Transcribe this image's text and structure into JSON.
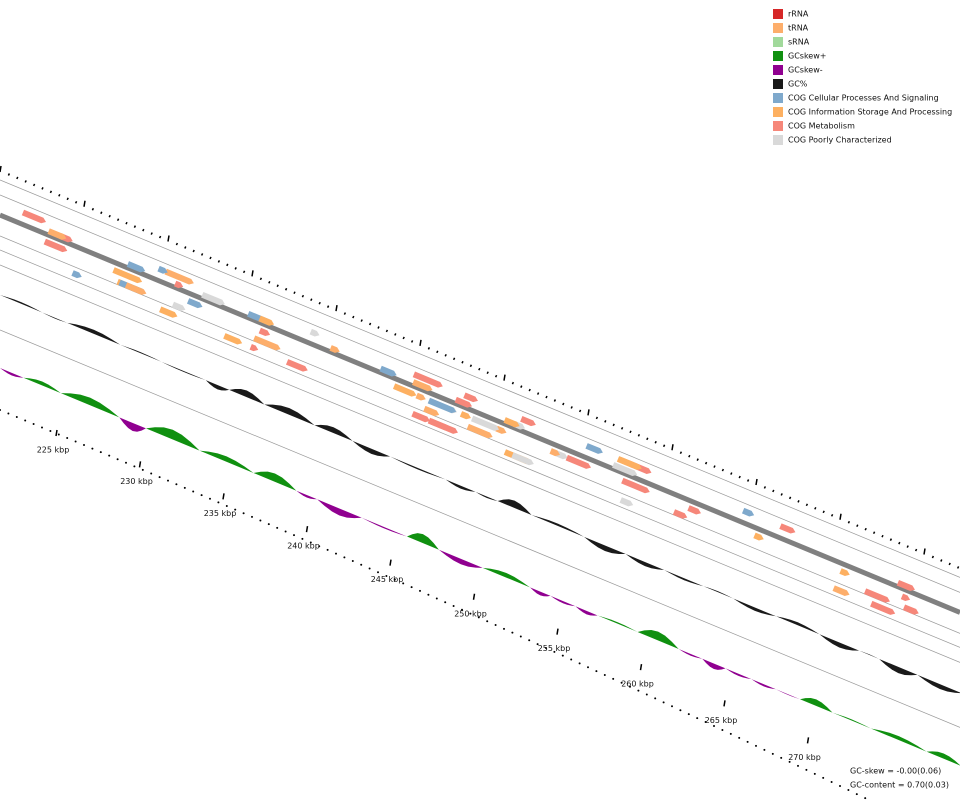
{
  "legend": [
    {
      "label": "rRNA",
      "color": "#d62728"
    },
    {
      "label": "tRNA",
      "color": "#fdae6b"
    },
    {
      "label": "sRNA",
      "color": "#a1d99b"
    },
    {
      "label": "GCskew+",
      "color": "#109010"
    },
    {
      "label": "GCskew-",
      "color": "#900090"
    },
    {
      "label": "GC%",
      "color": "#1a1a1a"
    },
    {
      "label": "COG Cellular Processes And Signaling",
      "color": "#7fa9cc"
    },
    {
      "label": "COG Information Storage And Processing",
      "color": "#fdb061"
    },
    {
      "label": "COG Metabolism",
      "color": "#f6877a"
    },
    {
      "label": "COG Poorly Characterized",
      "color": "#d9d9d9"
    }
  ],
  "ticks": [
    "225 kbp",
    "230 kbp",
    "235 kbp",
    "240 kbp",
    "245 kbp",
    "250 kbp",
    "255 kbp",
    "260 kbp",
    "265 kbp",
    "270 kbp"
  ],
  "stats": {
    "gc_skew": "GC-skew = -0.00(0.06)",
    "gc_content": "GC-content = 0.70(0.03)"
  }
}
